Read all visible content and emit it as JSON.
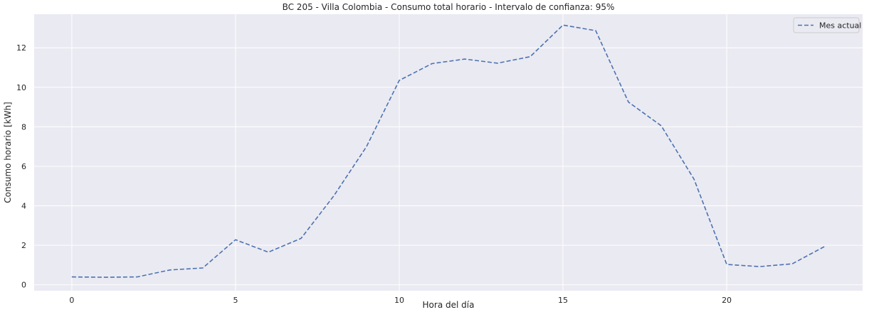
{
  "chart_data": {
    "type": "line",
    "title": "BC 205 - Villa Colombia - Consumo total horario - Intervalo de confianza: 95%",
    "xlabel": "Hora del día",
    "ylabel": "Consumo horario [kWh]",
    "xlim": [
      -1.15,
      24.15
    ],
    "ylim": [
      -0.3,
      13.7
    ],
    "x_ticks": [
      0,
      5,
      10,
      15,
      20
    ],
    "y_ticks": [
      0,
      2,
      4,
      6,
      8,
      10,
      12
    ],
    "grid": true,
    "legend_position": "top-right",
    "colors": {
      "background": "#eaeaf2",
      "grid": "#ffffff",
      "series": "#4c72b0"
    },
    "series": [
      {
        "name": "Mes actual",
        "line_style": "dashed",
        "x": [
          0,
          1,
          2,
          3,
          4,
          5,
          6,
          7,
          8,
          9,
          10,
          11,
          12,
          13,
          14,
          15,
          16,
          17,
          18,
          19,
          20,
          21,
          22,
          23
        ],
        "values": [
          0.4,
          0.38,
          0.4,
          0.75,
          0.85,
          2.28,
          1.65,
          2.35,
          4.5,
          7.0,
          10.35,
          11.2,
          11.43,
          11.22,
          11.55,
          13.15,
          12.87,
          9.25,
          8.05,
          5.35,
          1.03,
          0.92,
          1.06,
          1.95
        ]
      }
    ]
  }
}
